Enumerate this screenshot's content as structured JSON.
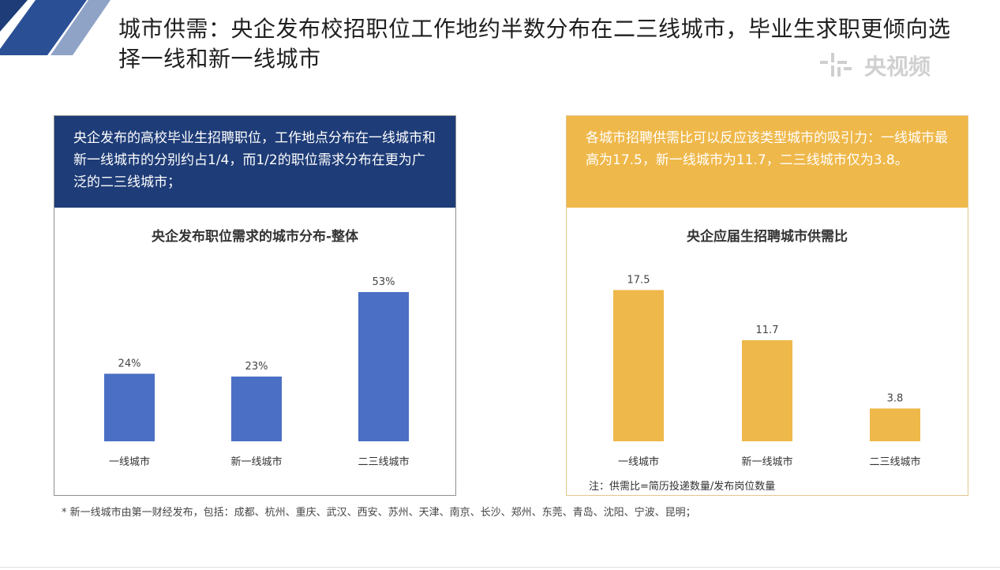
{
  "title": "城市供需：央企发布校招职位工作地约半数分布在二三线城市，毕业生求职更倾向选择一线和新一线城市",
  "watermark": "央视频",
  "left_panel": {
    "header": "央企发布的高校毕业生招聘职位，工作地点分布在一线城市和新一线城市的分别约占1/4，而1/2的职位需求分布在更为广泛的二三线城市；"
  },
  "right_panel": {
    "header": "各城市招聘供需比可以反应该类型城市的吸引力：一线城市最高为17.5，新一线城市为11.7，二三线城市仅为3.8。",
    "note": "注：供需比=简历投递数量/发布岗位数量"
  },
  "footnote": "* 新一线城市由第一财经发布，包括：成都、杭州、重庆、武汉、西安、苏州、天津、南京、长沙、郑州、东莞、青岛、沈阳、宁波、昆明；",
  "colors": {
    "left_header": "#1e3c77",
    "left_bar": "#4a6fc4",
    "right_header": "#efb84a",
    "right_bar": "#efb84a"
  },
  "chart_data": [
    {
      "type": "bar",
      "title": "央企发布职位需求的城市分布-整体",
      "categories": [
        "一线城市",
        "新一线城市",
        "二三线城市"
      ],
      "values": [
        24,
        23,
        53
      ],
      "value_labels": [
        "24%",
        "23%",
        "53%"
      ],
      "ylim": [
        0,
        60
      ],
      "grid": false
    },
    {
      "type": "bar",
      "title": "央企应届生招聘城市供需比",
      "categories": [
        "一线城市",
        "新一线城市",
        "二三线城市"
      ],
      "values": [
        17.5,
        11.7,
        3.8
      ],
      "value_labels": [
        "17.5",
        "11.7",
        "3.8"
      ],
      "ylim": [
        0,
        20
      ],
      "grid": false
    }
  ]
}
